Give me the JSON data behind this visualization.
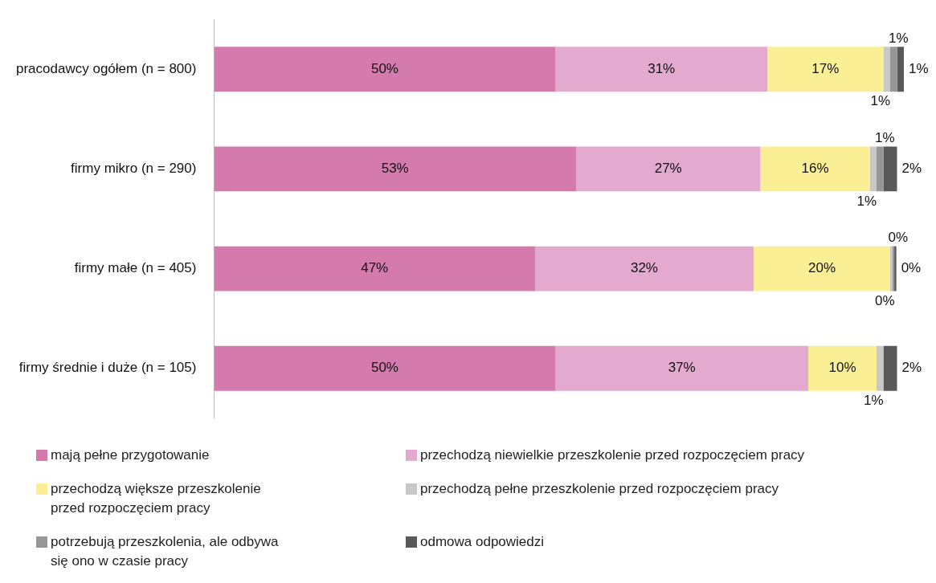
{
  "chart_data": {
    "type": "bar",
    "orientation": "horizontal",
    "stacked": true,
    "legend": "bottom",
    "tick_labels": "y",
    "categories": [
      "pracodawcy ogółem (n = 800)",
      "firmy mikro (n = 290)",
      "firmy małe (n = 405)",
      "firmy średnie i duże (n = 105)"
    ],
    "series": [
      {
        "name": "mają pełne przygotowanie",
        "color": "#d57aad",
        "values": [
          50,
          53,
          47,
          50
        ],
        "value_labels": [
          "50%",
          "53%",
          "47%",
          "50%"
        ]
      },
      {
        "name": "przechodzą niewielkie przeszkolenie przed rozpoczęciem pracy",
        "color": "#e3a9cf",
        "values": [
          31,
          27,
          32,
          37
        ],
        "value_labels": [
          "31%",
          "27%",
          "32%",
          "37%"
        ]
      },
      {
        "name": "przechodzą większe przeszkolenie przed rozpoczęciem pracy",
        "color": "#fbef95",
        "values": [
          17,
          16,
          20,
          10
        ],
        "value_labels": [
          "17%",
          "16%",
          "20%",
          "10%"
        ]
      },
      {
        "name": "przechodzą pełne przeszkolenie przed rozpoczęciem pracy",
        "color": "#c8c8c8",
        "values": [
          1,
          1,
          0.3,
          1
        ],
        "value_labels": [
          "1%",
          "1%",
          "0%",
          "1%"
        ]
      },
      {
        "name": "potrzebują przeszkolenia, ale odbywa się ono w czasie pracy",
        "color": "#969696",
        "values": [
          1,
          1,
          0.3,
          0
        ],
        "value_labels": [
          "1%",
          "1%",
          "0%",
          null
        ]
      },
      {
        "name": "odmowa odpowiedzi",
        "color": "#595959",
        "values": [
          1,
          2,
          0.3,
          2
        ],
        "value_labels": [
          "1%",
          "2%",
          "0%",
          "2%"
        ]
      }
    ]
  }
}
